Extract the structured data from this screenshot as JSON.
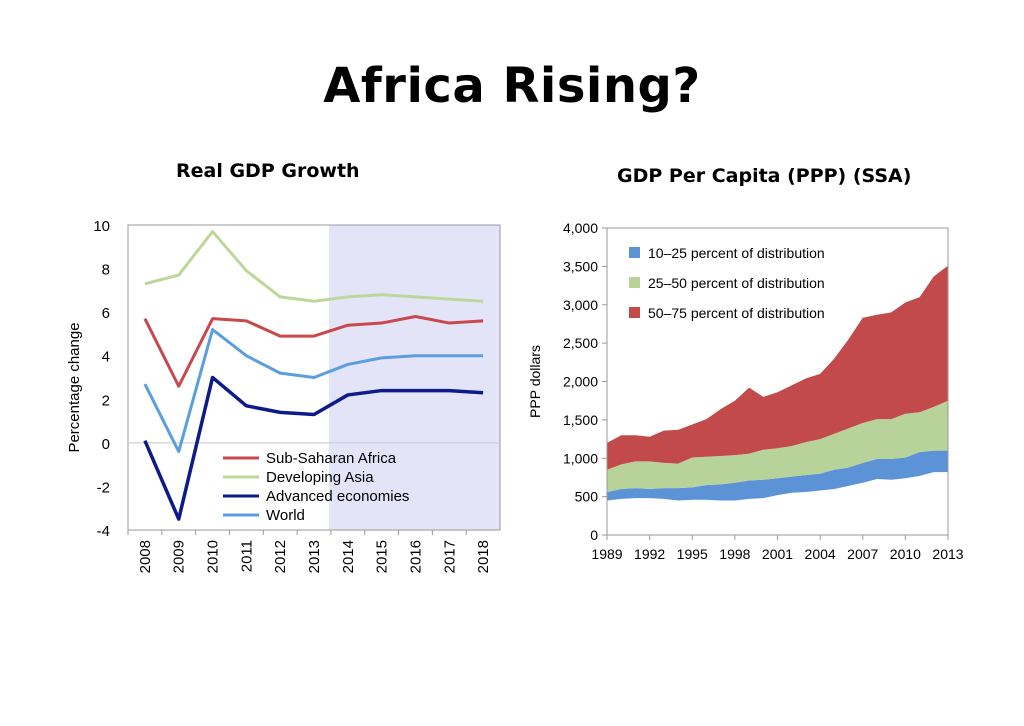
{
  "title": "Africa Rising?",
  "chart_data": [
    {
      "type": "line",
      "title": "Real GDP Growth",
      "ylabel": "Percentage change",
      "xlabel": "",
      "categories": [
        "2008",
        "2009",
        "2010",
        "2011",
        "2012",
        "2013",
        "2014",
        "2015",
        "2016",
        "2017",
        "2018"
      ],
      "ylim": [
        -4,
        10
      ],
      "yticks": [
        10,
        8,
        6,
        4,
        2,
        0,
        -2,
        -4
      ],
      "shaded_projection_range": [
        "2014",
        "2018"
      ],
      "series": [
        {
          "name": "Sub-Saharan Africa",
          "color": "#c9484b",
          "values": [
            5.7,
            2.6,
            5.7,
            5.6,
            4.9,
            4.9,
            5.4,
            5.5,
            5.8,
            5.5,
            5.6
          ]
        },
        {
          "name": "Developing Asia",
          "color": "#bdd79a",
          "values": [
            7.3,
            7.7,
            9.7,
            7.9,
            6.7,
            6.5,
            6.7,
            6.8,
            6.7,
            6.6,
            6.5
          ]
        },
        {
          "name": "Advanced economies",
          "color": "#0d1b8a",
          "values": [
            0.1,
            -3.5,
            3.0,
            1.7,
            1.4,
            1.3,
            2.2,
            2.4,
            2.4,
            2.4,
            2.3
          ]
        },
        {
          "name": "World",
          "color": "#5b9ee0",
          "values": [
            2.7,
            -0.4,
            5.2,
            4.0,
            3.2,
            3.0,
            3.6,
            3.9,
            4.0,
            4.0,
            4.0
          ]
        }
      ],
      "legend_position": "bottom-middle"
    },
    {
      "type": "area",
      "title": "GDP Per Capita (PPP) (SSA)",
      "ylabel": "PPP dollars",
      "xlabel": "",
      "x": [
        1989,
        1990,
        1991,
        1992,
        1993,
        1994,
        1995,
        1996,
        1997,
        1998,
        1999,
        2000,
        2001,
        2002,
        2003,
        2004,
        2005,
        2006,
        2007,
        2008,
        2009,
        2010,
        2011,
        2012,
        2013
      ],
      "xticks": [
        "1989",
        "1992",
        "1995",
        "1998",
        "2001",
        "2004",
        "2007",
        "2010",
        "2013"
      ],
      "ylim": [
        0,
        4000
      ],
      "yticks": [
        "4,000",
        "3,500",
        "3,000",
        "2,500",
        "2,000",
        "1,500",
        "1,000",
        "500",
        "0"
      ],
      "ytick_values": [
        4000,
        3500,
        3000,
        2500,
        2000,
        1500,
        1000,
        500,
        0
      ],
      "series": [
        {
          "name": "10–25 percent of distribution",
          "color": "#5b93d6",
          "lower": [
            450,
            470,
            480,
            480,
            470,
            450,
            460,
            460,
            450,
            450,
            470,
            480,
            520,
            550,
            560,
            580,
            600,
            640,
            680,
            730,
            720,
            740,
            770,
            820,
            820
          ],
          "upper": [
            560,
            600,
            610,
            600,
            610,
            610,
            620,
            650,
            660,
            680,
            710,
            720,
            740,
            760,
            780,
            800,
            850,
            880,
            940,
            990,
            990,
            1010,
            1080,
            1100,
            1100
          ]
        },
        {
          "name": "25–50 percent of distribution",
          "color": "#b7d39a",
          "lower": [
            560,
            600,
            610,
            600,
            610,
            610,
            620,
            650,
            660,
            680,
            710,
            720,
            740,
            760,
            780,
            800,
            850,
            880,
            940,
            990,
            990,
            1010,
            1080,
            1100,
            1100
          ],
          "upper": [
            850,
            920,
            960,
            960,
            940,
            930,
            1010,
            1020,
            1030,
            1040,
            1060,
            1110,
            1130,
            1160,
            1210,
            1250,
            1320,
            1390,
            1460,
            1510,
            1510,
            1580,
            1600,
            1670,
            1750
          ]
        },
        {
          "name": "50–75 percent of distribution",
          "color": "#c34a4a",
          "lower": [
            850,
            920,
            960,
            960,
            940,
            930,
            1010,
            1020,
            1030,
            1040,
            1060,
            1110,
            1130,
            1160,
            1210,
            1250,
            1320,
            1390,
            1460,
            1510,
            1510,
            1580,
            1600,
            1670,
            1750
          ],
          "upper": [
            1200,
            1300,
            1300,
            1280,
            1360,
            1370,
            1440,
            1510,
            1640,
            1750,
            1920,
            1800,
            1860,
            1950,
            2040,
            2100,
            2300,
            2550,
            2830,
            2870,
            2900,
            3030,
            3100,
            3370,
            3510
          ]
        }
      ],
      "legend_position": "top-left"
    }
  ]
}
